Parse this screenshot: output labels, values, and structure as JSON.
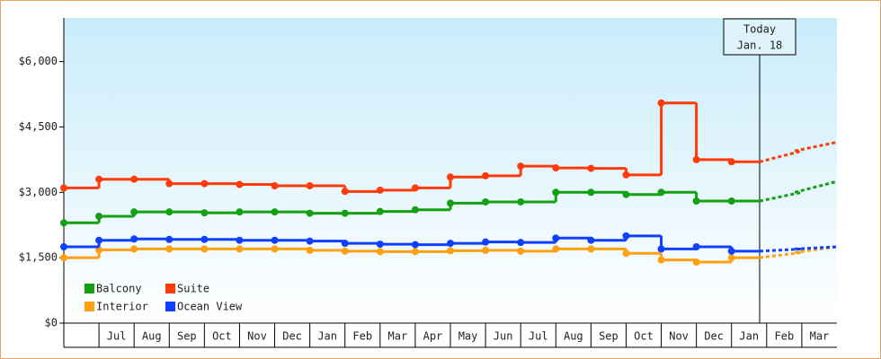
{
  "chart_data": {
    "type": "line",
    "categories": [
      null,
      "Jul",
      "Aug",
      "Sep",
      "Oct",
      "Nov",
      "Dec",
      "Jan",
      "Feb",
      "Mar",
      "Apr",
      "May",
      "Jun",
      "Jul",
      "Aug",
      "Sep",
      "Oct",
      "Nov",
      "Dec",
      "Jan",
      "Feb",
      "Mar"
    ],
    "series": [
      {
        "name": "Balcony",
        "color": "#13a013",
        "values": [
          2300,
          2450,
          2550,
          2550,
          2530,
          2550,
          2550,
          2520,
          2520,
          2560,
          2600,
          2750,
          2780,
          2780,
          3000,
          3000,
          2950,
          3000,
          2800,
          2800,
          3000,
          3250
        ]
      },
      {
        "name": "Suite",
        "color": "#ff3b0a",
        "values": [
          3100,
          3300,
          3300,
          3200,
          3200,
          3180,
          3150,
          3150,
          3020,
          3050,
          3100,
          3350,
          3380,
          3600,
          3560,
          3550,
          3400,
          5050,
          3750,
          3700,
          3950,
          4150
        ]
      },
      {
        "name": "Interior",
        "color": "#ffa010",
        "values": [
          1500,
          1680,
          1700,
          1700,
          1700,
          1700,
          1700,
          1670,
          1650,
          1640,
          1640,
          1660,
          1670,
          1650,
          1700,
          1700,
          1600,
          1450,
          1400,
          1500,
          1620,
          1750
        ]
      },
      {
        "name": "Ocean View",
        "color": "#1040ff",
        "values": [
          1750,
          1900,
          1930,
          1920,
          1920,
          1900,
          1900,
          1880,
          1830,
          1810,
          1800,
          1830,
          1860,
          1850,
          1950,
          1900,
          2000,
          1700,
          1750,
          1650,
          1700,
          1750
        ]
      }
    ],
    "ylim": [
      0,
      7000
    ],
    "yticks": [
      {
        "value": 0,
        "label": "$0"
      },
      {
        "value": 1500,
        "label": "$1,500"
      },
      {
        "value": 3000,
        "label": "$3,000"
      },
      {
        "value": 4500,
        "label": "$4,500"
      },
      {
        "value": 6000,
        "label": "$6,000"
      }
    ],
    "annotation": [
      "Today",
      "Jan. 18"
    ]
  }
}
